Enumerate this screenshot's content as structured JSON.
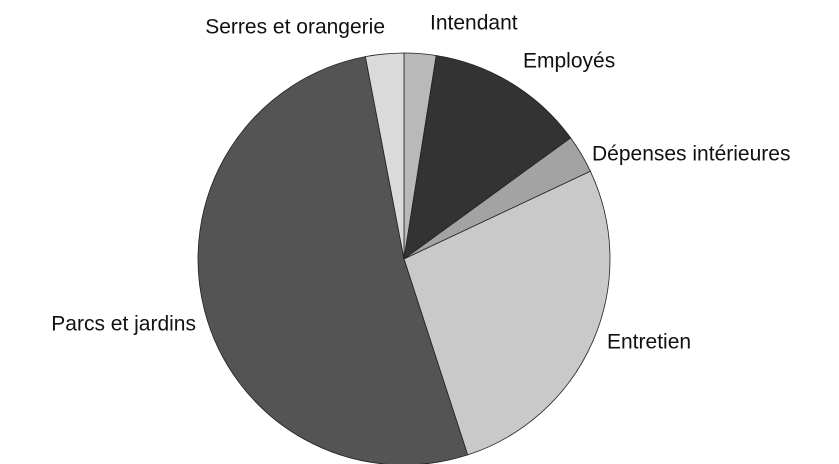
{
  "chart_data": {
    "type": "pie",
    "categories": [
      "Intendant",
      "Employés",
      "Dépenses intérieures",
      "Entretien",
      "Parcs et jardins",
      "Serres et orangerie"
    ],
    "values": [
      2.5,
      12.5,
      3,
      27,
      52,
      3
    ],
    "colors": [
      "#b9b9b9",
      "#333333",
      "#a3a3a3",
      "#c9c9c9",
      "#545454",
      "#dadada"
    ]
  }
}
